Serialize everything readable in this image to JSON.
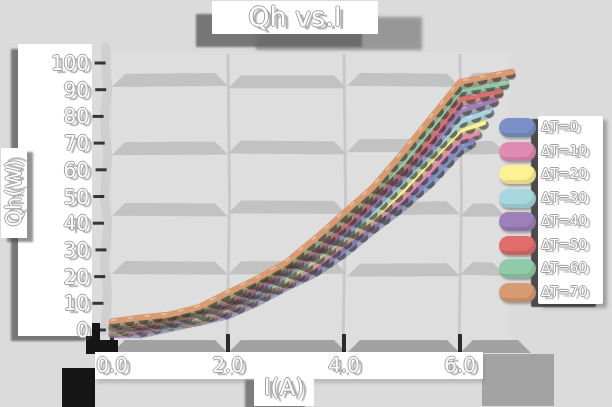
{
  "page": {
    "background": "#dbdbdb"
  },
  "chart_data": {
    "type": "line",
    "title": "Qh vs.I",
    "xlabel": "I(A)",
    "ylabel": "Qh(W)",
    "xlim": [
      0,
      7
    ],
    "ylim": [
      0,
      100
    ],
    "grid": {
      "h_band_values": [
        93.5,
        68.5,
        45.5,
        23
      ],
      "v_line_values": [
        2,
        4,
        6
      ],
      "gridlines": "on"
    },
    "legend_position": "right",
    "xticks": {
      "values": [
        0,
        2,
        4,
        6
      ],
      "labels": [
        "0.0",
        "2.0",
        "4.0",
        "6.0"
      ]
    },
    "yticks": {
      "values": [
        0,
        10,
        20,
        30,
        40,
        50,
        60,
        70,
        80,
        90,
        100
      ],
      "labels": [
        "0",
        "10",
        "20",
        "30",
        "40",
        "50",
        "60",
        "70",
        "80",
        "90",
        "100"
      ]
    },
    "x_steps": [
      0,
      0.5,
      1,
      1.5,
      2,
      2.5,
      3,
      3.5,
      4,
      4.5,
      5,
      5.5,
      6
    ],
    "series": [
      {
        "name": "ΔT=0",
        "color": "#7b90c8",
        "values": [
          0,
          0.5,
          1.9,
          4.3,
          7.6,
          11.8,
          17,
          23.1,
          30.2,
          38.3,
          47.2,
          57.1,
          68
        ],
        "end": [
          6.2,
          70.5
        ]
      },
      {
        "name": "ΔT=10",
        "color": "#e18ab4",
        "values": [
          0.5,
          1,
          2.5,
          4.9,
          8.4,
          12.8,
          18.3,
          24.7,
          32.1,
          40.5,
          49.9,
          60.2,
          71.6
        ],
        "end": [
          6.3,
          74.4
        ]
      },
      {
        "name": "ΔT=20",
        "color": "#fbf393",
        "values": [
          1,
          1.5,
          3.1,
          5.6,
          9.2,
          13.9,
          19.6,
          26.3,
          34,
          42.7,
          52.5,
          63.4,
          75.2
        ],
        "end": [
          6.4,
          78.2
        ]
      },
      {
        "name": "ΔT=30",
        "color": "#a6d7df",
        "values": [
          1.5,
          2,
          3.6,
          6.3,
          10.1,
          14.9,
          20.8,
          27.8,
          35.9,
          45,
          55.2,
          66.5,
          78.8
        ],
        "end": [
          6.5,
          82
        ]
      },
      {
        "name": "ΔT=40",
        "color": "#9d80b7",
        "values": [
          2,
          2.6,
          4.2,
          7,
          10.9,
          16,
          22.1,
          29.4,
          37.7,
          47.2,
          57.8,
          69.6,
          82.4
        ],
        "end": [
          6.6,
          85.8
        ]
      },
      {
        "name": "ΔT=50",
        "color": "#e16c6c",
        "values": [
          2.5,
          3.1,
          4.8,
          7.7,
          11.8,
          17,
          23.4,
          30.9,
          39.6,
          49.5,
          60.5,
          72.7,
          86
        ],
        "end": [
          6.7,
          89.6
        ]
      },
      {
        "name": "ΔT=60",
        "color": "#90cba9",
        "values": [
          3,
          3.6,
          5.4,
          8.4,
          12.6,
          18,
          24.7,
          32.5,
          41.5,
          51.7,
          63.1,
          75.8,
          89.6
        ],
        "end": [
          6.8,
          93.4
        ]
      },
      {
        "name": "ΔT=70",
        "color": "#d89b71",
        "values": [
          3.5,
          4.1,
          6,
          9.1,
          13.5,
          19.1,
          25.9,
          34,
          43.4,
          54,
          66.3,
          78.9,
          93.2
        ],
        "end": [
          6.9,
          97.2
        ]
      }
    ]
  },
  "style": {
    "plot_bg": "#e0e0e0",
    "h_band": "#c2c2c2",
    "v_gridline": "#c9c9c9",
    "left_spine": "#cfcfcf",
    "bottom_spine": "#a2a2a2",
    "shadow_block": "#9c9c9c",
    "tick_mark": "#1a1a1a",
    "corner_mark": "#161616",
    "curve_shadow": "#1e1e1e"
  }
}
